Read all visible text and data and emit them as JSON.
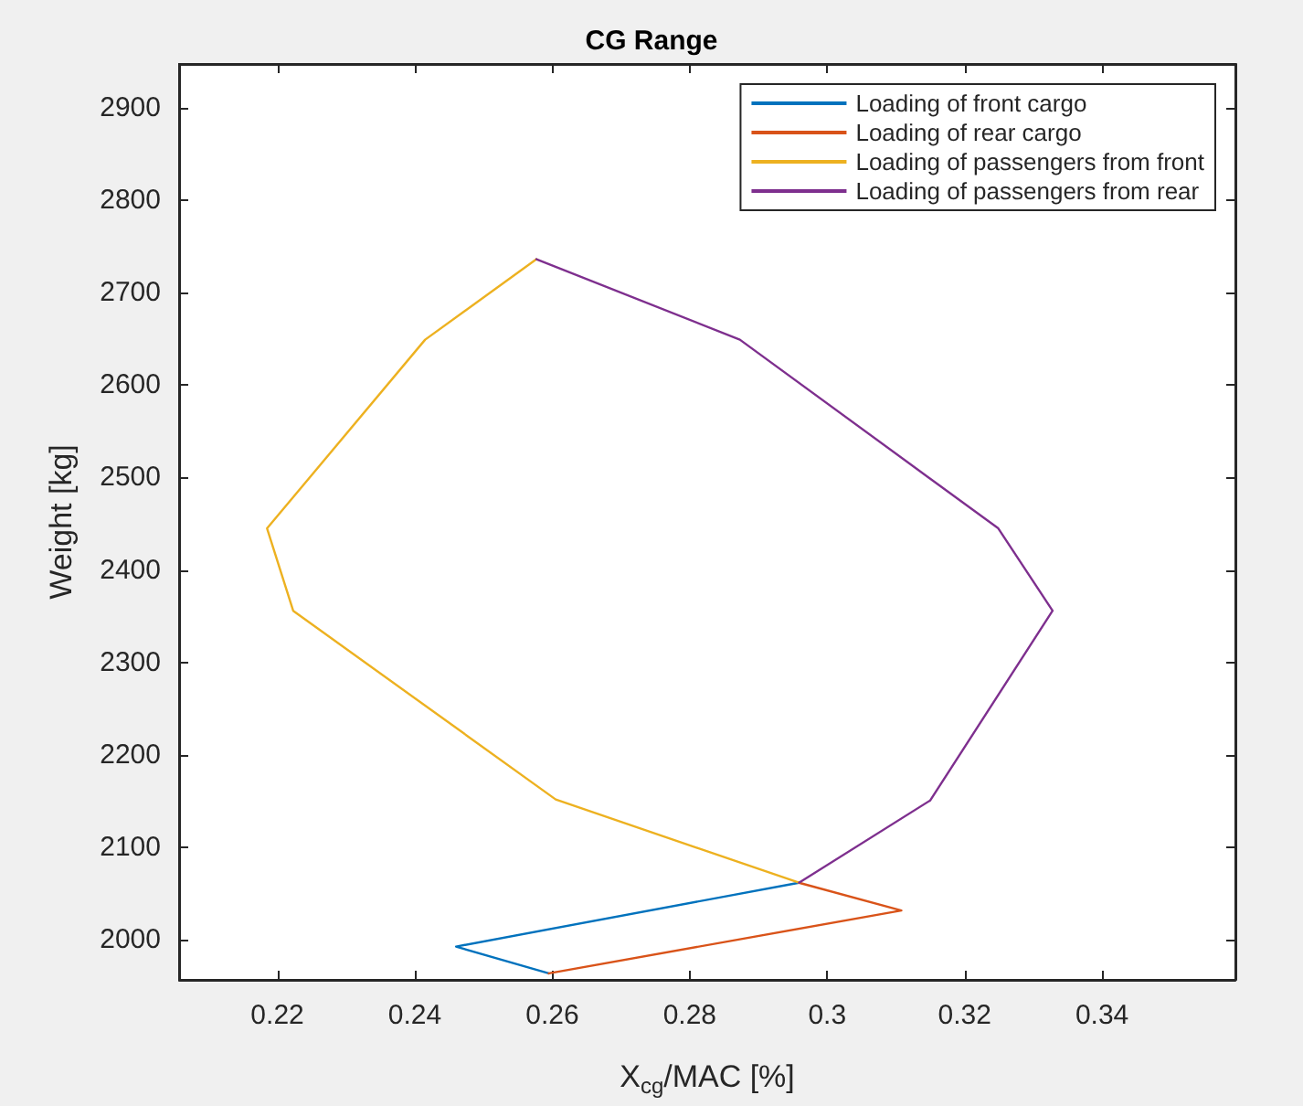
{
  "chart_data": {
    "type": "line",
    "title": "CG Range",
    "xlabel": "X$_{cg}$/MAC [%]",
    "ylabel": "Weight [kg]",
    "series": [
      {
        "name": "Loading of front cargo",
        "color": "#0072bd",
        "x": [
          0.2959,
          0.246,
          0.2595
        ],
        "values": [
          2062,
          1993,
          1964
        ]
      },
      {
        "name": "Loading of rear cargo",
        "color": "#d95319",
        "x": [
          0.2595,
          0.3108,
          0.2959
        ],
        "values": [
          1964,
          2032,
          2062
        ]
      },
      {
        "name": "Loading of passengers from front",
        "color": "#edb120",
        "x": [
          0.2959,
          0.2605,
          0.2223,
          0.2185,
          0.2415,
          0.2577
        ],
        "values": [
          2062,
          2152,
          2356,
          2445,
          2649,
          2736
        ]
      },
      {
        "name": "Loading of passengers from rear",
        "color": "#7e2f8e",
        "x": [
          0.2959,
          0.315,
          0.3328,
          0.3249,
          0.2873,
          0.2577
        ],
        "values": [
          2062,
          2151,
          2356,
          2445,
          2649,
          2736
        ]
      }
    ],
    "xlim": [
      0.2057,
      0.3594
    ],
    "xticks": [
      0.22,
      0.24,
      0.26,
      0.28,
      0.3,
      0.32,
      0.34
    ],
    "ylim": [
      1957,
      2947
    ],
    "yticks": [
      2000,
      2100,
      2200,
      2300,
      2400,
      2500,
      2600,
      2700,
      2800,
      2900
    ],
    "grid": false,
    "legend": "top right",
    "marker": "none",
    "line_style": "solid"
  }
}
